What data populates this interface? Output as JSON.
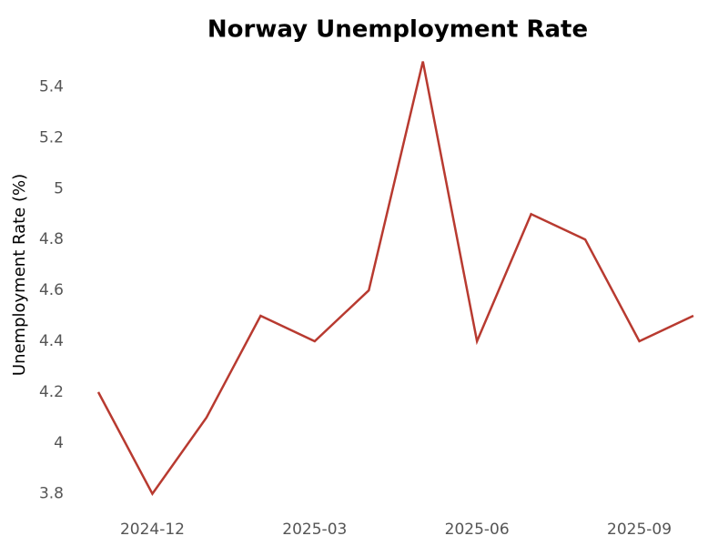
{
  "chart_data": {
    "type": "line",
    "title": "Norway Unemployment Rate",
    "y_label": "Unemployment Rate (%)",
    "x": [
      "2024-11",
      "2024-12",
      "2025-01",
      "2025-02",
      "2025-03",
      "2025-04",
      "2025-05",
      "2025-06",
      "2025-07",
      "2025-08",
      "2025-09",
      "2025-10"
    ],
    "series": [
      {
        "name": "Unemployment Rate",
        "color": "#b83a30",
        "values": [
          4.2,
          3.8,
          4.1,
          4.5,
          4.4,
          4.6,
          5.5,
          4.4,
          4.9,
          4.8,
          4.4,
          4.5
        ]
      }
    ],
    "xticks": [
      "2024-12",
      "2025-03",
      "2025-06",
      "2025-09"
    ],
    "ylim": [
      3.72,
      5.52
    ],
    "yticks": [
      3.8,
      4,
      4.2,
      4.4,
      4.6,
      4.8,
      5,
      5.2,
      5.4
    ],
    "grid": false
  }
}
